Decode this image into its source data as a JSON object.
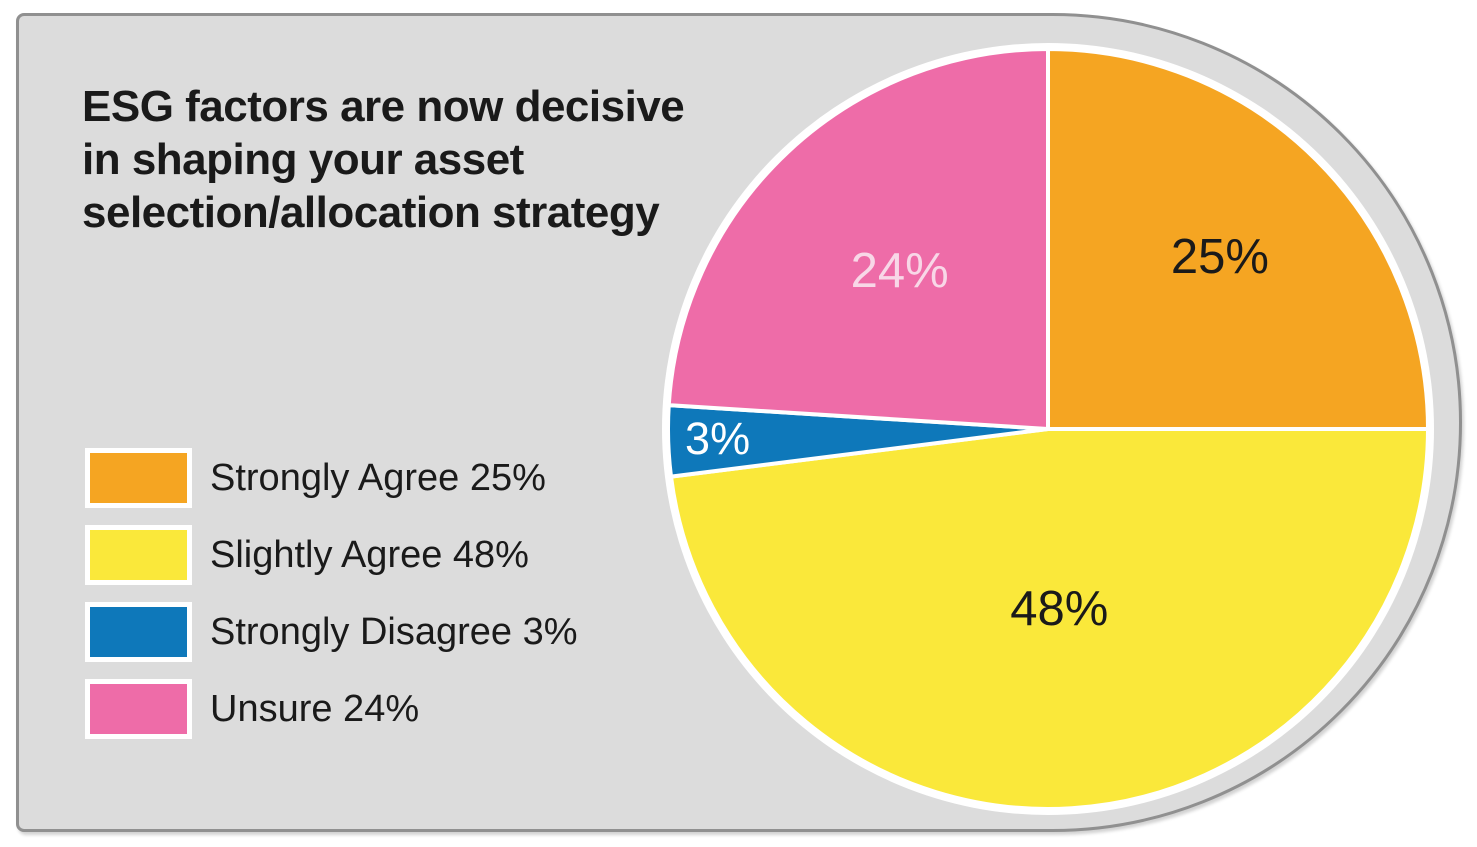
{
  "title": {
    "text": "ESG factors are now decisive\nin shaping your asset\nselection/allocation strategy"
  },
  "legend": {
    "items": [
      {
        "label": "Strongly Agree 25%"
      },
      {
        "label": "Slightly Agree 48%"
      },
      {
        "label": "Strongly Disagree 3%"
      },
      {
        "label": "Unsure 24%"
      }
    ]
  },
  "colors": {
    "panel_background": "#DCDCDC",
    "panel_border": "#909090",
    "page_background": "#FFFFFF",
    "text": "#1A1A1A",
    "slice_separator": "#FFFFFF"
  },
  "chart_data": {
    "type": "pie",
    "title": "ESG factors are now decisive in shaping your asset selection/allocation strategy",
    "direction": "clockwise",
    "start_angle_deg": 0,
    "legend_position": "left",
    "segments": [
      {
        "name": "Strongly Agree",
        "value": 25,
        "color": "#F5A522",
        "slice_label": "25%",
        "slice_label_color": "#1A1A1A",
        "label_radius_factor": 0.64
      },
      {
        "name": "Slightly Agree",
        "value": 48,
        "color": "#FAE83A",
        "slice_label": "48%",
        "slice_label_color": "#1A1A1A",
        "label_radius_factor": 0.475
      },
      {
        "name": "Strongly Disagree",
        "value": 3,
        "color": "#0E78BA",
        "slice_label": "3%",
        "slice_label_color": "#FFFFFF",
        "label_radius_factor": 0.87
      },
      {
        "name": "Unsure",
        "value": 24,
        "color": "#EE6CA8",
        "slice_label": "24%",
        "slice_label_color": "#F8D7E7",
        "label_radius_factor": 0.57
      }
    ]
  }
}
